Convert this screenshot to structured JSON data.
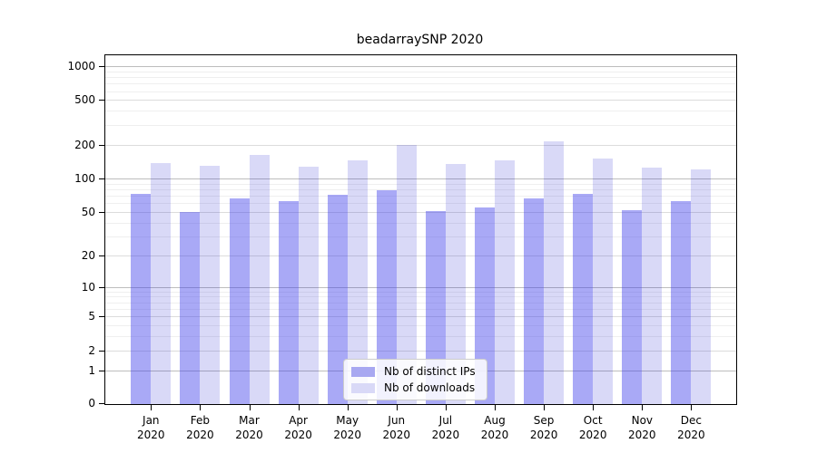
{
  "chart_data": {
    "type": "bar",
    "title": "beadarraySNP 2020",
    "year": "2020",
    "categories": [
      "Jan",
      "Feb",
      "Mar",
      "Apr",
      "May",
      "Jun",
      "Jul",
      "Aug",
      "Sep",
      "Oct",
      "Nov",
      "Dec"
    ],
    "series": [
      {
        "name": "Nb of distinct IPs",
        "color": "#a8a8f1",
        "fill": "rgba(60,60,235,0.44)",
        "values": [
          73,
          50,
          66,
          62,
          71,
          78,
          51,
          55,
          66,
          72,
          52,
          62
        ]
      },
      {
        "name": "Nb of downloads",
        "color": "#d9d9f7",
        "fill": "rgba(20,20,205,0.16)",
        "values": [
          136,
          130,
          162,
          128,
          145,
          199,
          134,
          145,
          214,
          150,
          125,
          120
        ]
      }
    ],
    "xlabel": "",
    "ylabel": "",
    "y_ticks": [
      0,
      1,
      2,
      5,
      10,
      20,
      50,
      100,
      200,
      500,
      1000
    ],
    "y_scale": "log10(1+value)",
    "ylim": [
      0,
      1000
    ],
    "grid": "on",
    "legend_position": "lower center"
  }
}
